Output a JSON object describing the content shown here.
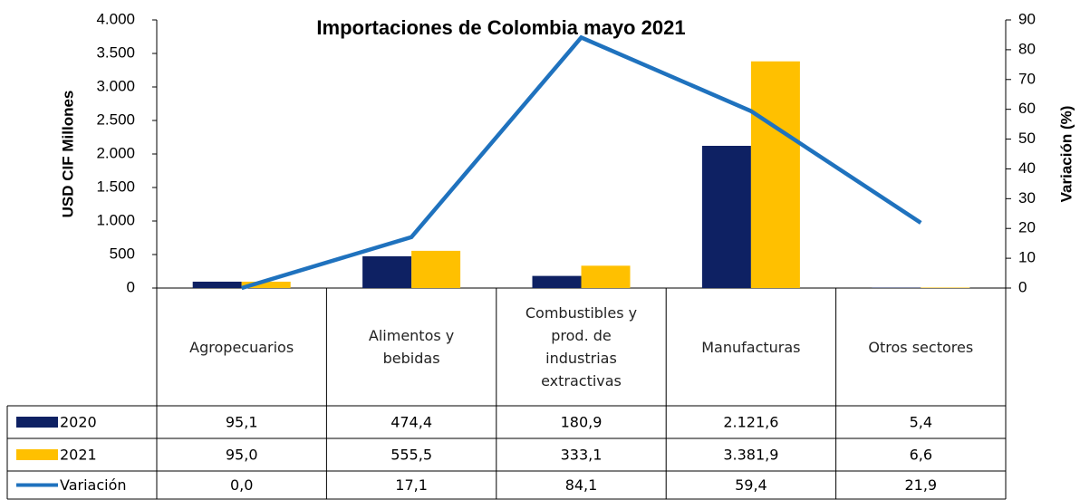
{
  "chart_data": {
    "type": "bar",
    "title": "Importaciones de Colombia mayo 2021",
    "ylabel": "USD CIF Millones",
    "y2label": "Variación (%)",
    "categories": [
      "Agropecuarios",
      "Alimentos y bebidas",
      "Combustibles y prod. de industrias extractivas",
      "Manufacturas",
      "Otros sectores"
    ],
    "series": [
      {
        "name": "2020",
        "color": "#0e2163",
        "type": "bar",
        "values": [
          95.1,
          474.4,
          180.9,
          2121.6,
          5.4
        ],
        "value_labels": [
          "95,1",
          "474,4",
          "180,9",
          "2.121,6",
          "5,4"
        ]
      },
      {
        "name": "2021",
        "color": "#ffc000",
        "type": "bar",
        "values": [
          95.0,
          555.5,
          333.1,
          3381.9,
          6.6
        ],
        "value_labels": [
          "95,0",
          "555,5",
          "333,1",
          "3.381,9",
          "6,6"
        ]
      },
      {
        "name": "Variación",
        "color": "#1f72be",
        "type": "line",
        "axis": "y2",
        "values": [
          0.0,
          17.1,
          84.1,
          59.4,
          21.9
        ],
        "value_labels": [
          "0,0",
          "17,1",
          "84,1",
          "59,4",
          "21,9"
        ]
      }
    ],
    "ylim": [
      0,
      4000
    ],
    "yticks": [
      0,
      500,
      {
        "value": 1000,
        "label": "1.000"
      },
      {
        "value": 1500,
        "label": "1.500"
      },
      {
        "value": 2000,
        "label": "2.000"
      },
      {
        "value": 2500,
        "label": "2.500"
      },
      {
        "value": 3000,
        "label": "3.000"
      },
      {
        "value": 3500,
        "label": "3.500"
      },
      {
        "value": 4000,
        "label": "4.000"
      }
    ],
    "y2lim": [
      0,
      90
    ],
    "y2ticks": [
      0,
      10,
      20,
      30,
      40,
      50,
      60,
      70,
      80,
      90
    ],
    "grid": false
  }
}
